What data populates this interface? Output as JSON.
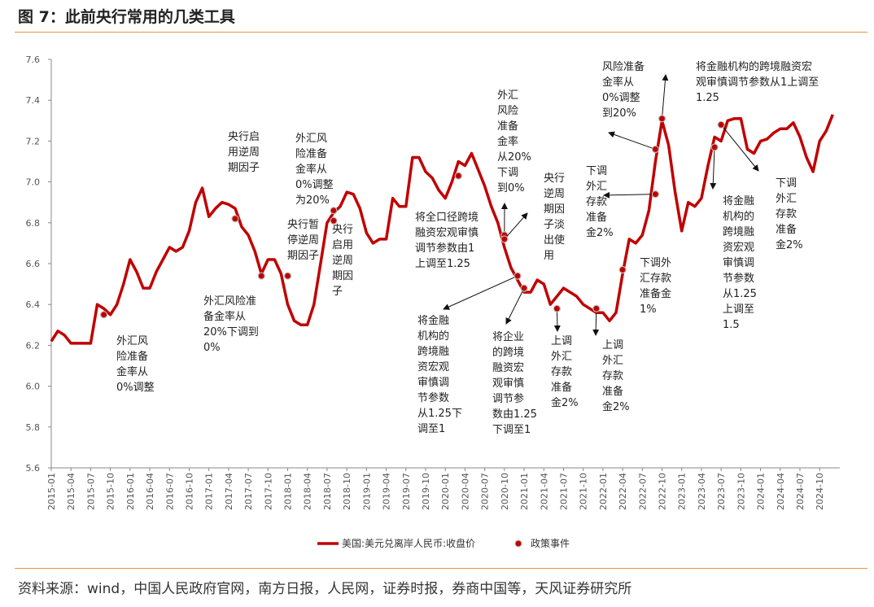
{
  "title": "图 7：此前央行常用的几类工具",
  "source": "资料来源：wind，中国人民政府官网，南方日报，人民网，证券时报，券商中国等，天风证券研究所",
  "chart_data": {
    "type": "line",
    "title": "",
    "xlabel": "",
    "ylabel": "",
    "ylim": [
      5.6,
      7.6
    ],
    "yticks": [
      "5.6",
      "5.8",
      "6.0",
      "6.2",
      "6.4",
      "6.6",
      "6.8",
      "7.0",
      "7.2",
      "7.4",
      "7.6"
    ],
    "grid": false,
    "legend_position": "bottom",
    "line_color": "#c00000",
    "xticks": [
      "2015-01",
      "2015-04",
      "2015-07",
      "2015-10",
      "2016-01",
      "2016-04",
      "2016-07",
      "2016-10",
      "2017-01",
      "2017-04",
      "2017-07",
      "2017-10",
      "2018-01",
      "2018-04",
      "2018-07",
      "2018-10",
      "2019-01",
      "2019-04",
      "2019-07",
      "2019-10",
      "2020-01",
      "2020-04",
      "2020-07",
      "2020-10",
      "2021-01",
      "2021-04",
      "2021-07",
      "2021-10",
      "2022-01",
      "2022-04",
      "2022-07",
      "2022-10",
      "2023-01",
      "2023-04",
      "2023-07",
      "2023-10",
      "2024-01",
      "2024-04",
      "2024-07",
      "2024-10"
    ],
    "series": [
      {
        "name": "美国:美元兑离岸人民币:收盘价",
        "start": "2015-01",
        "frequency": "monthly",
        "values": [
          6.22,
          6.27,
          6.25,
          6.21,
          6.21,
          6.21,
          6.21,
          6.4,
          6.38,
          6.35,
          6.4,
          6.5,
          6.62,
          6.56,
          6.48,
          6.48,
          6.56,
          6.62,
          6.68,
          6.66,
          6.68,
          6.76,
          6.9,
          6.97,
          6.83,
          6.87,
          6.9,
          6.89,
          6.87,
          6.78,
          6.74,
          6.66,
          6.55,
          6.62,
          6.62,
          6.55,
          6.4,
          6.32,
          6.3,
          6.3,
          6.4,
          6.6,
          6.8,
          6.85,
          6.88,
          6.95,
          6.94,
          6.87,
          6.75,
          6.7,
          6.72,
          6.72,
          6.92,
          6.88,
          6.88,
          7.12,
          7.12,
          7.05,
          7.02,
          6.96,
          6.92,
          7.0,
          7.1,
          7.08,
          7.14,
          7.06,
          6.98,
          6.88,
          6.8,
          6.68,
          6.58,
          6.52,
          6.46,
          6.46,
          6.52,
          6.5,
          6.4,
          6.44,
          6.48,
          6.46,
          6.44,
          6.4,
          6.38,
          6.36,
          6.36,
          6.32,
          6.36,
          6.55,
          6.72,
          6.7,
          6.74,
          6.86,
          7.1,
          7.3,
          7.18,
          6.95,
          6.76,
          6.9,
          6.88,
          6.92,
          7.08,
          7.22,
          7.2,
          7.3,
          7.31,
          7.31,
          7.16,
          7.14,
          7.2,
          7.21,
          7.24,
          7.26,
          7.26,
          7.29,
          7.22,
          7.12,
          7.05,
          7.2,
          7.25,
          7.33
        ]
      }
    ],
    "events_legend": "政策事件",
    "events": [
      {
        "date": "2015-09",
        "value": 6.35,
        "lines": [
          "外汇风",
          "险准备",
          "金率从",
          "0%调整"
        ]
      },
      {
        "date": "2017-05",
        "value": 6.82,
        "lines": [
          "央行启",
          "用逆周",
          "期因子"
        ]
      },
      {
        "date": "2017-09",
        "value": 6.54,
        "lines": [
          "外汇风险准",
          "备金率从",
          "20%下调到",
          "0%"
        ]
      },
      {
        "date": "2018-01",
        "value": 6.54,
        "lines": [
          "央行暂",
          "停逆周",
          "期因子"
        ]
      },
      {
        "date": "2018-08",
        "value": 6.86,
        "lines": [
          "外汇风",
          "险准备",
          "金率从",
          "0%调整",
          "为20%"
        ]
      },
      {
        "date": "2018-08",
        "value": 6.81,
        "lines": [
          "央行",
          "启用",
          "逆周",
          "期因",
          "子"
        ]
      },
      {
        "date": "2020-03",
        "value": 7.03,
        "lines": [
          "将全口径跨境",
          "融资宏观审慎",
          "调节参数由1",
          "上调至1.25"
        ]
      },
      {
        "date": "2020-10",
        "value": 6.74,
        "lines": [
          "外汇",
          "风险",
          "准备",
          "金率",
          "从20%",
          "下调",
          "到0%"
        ]
      },
      {
        "date": "2020-10",
        "value": 6.72,
        "lines": [
          "央行",
          "逆周",
          "期因",
          "子淡",
          "出使",
          "用"
        ]
      },
      {
        "date": "2020-12",
        "value": 6.54,
        "lines": [
          "将金融",
          "机构的",
          "跨境融",
          "资宏观",
          "审慎调",
          "节参数",
          "从1.25下",
          "调至1"
        ]
      },
      {
        "date": "2021-01",
        "value": 6.48,
        "lines": [
          "将企业",
          "的跨境",
          "融资宏",
          "观审慎",
          "调节参",
          "数由1.25",
          "下调至1"
        ]
      },
      {
        "date": "2021-06",
        "value": 6.38,
        "lines": [
          "上调",
          "外汇",
          "存款",
          "准备",
          "金2%"
        ]
      },
      {
        "date": "2021-12",
        "value": 6.38,
        "lines": [
          "上调",
          "外汇",
          "存款",
          "准备",
          "金2%"
        ]
      },
      {
        "date": "2022-04",
        "value": 6.57,
        "lines": [
          "下调外",
          "汇存款",
          "准备金",
          "1%"
        ]
      },
      {
        "date": "2022-09",
        "value": 6.94,
        "lines": [
          "下调",
          "外汇",
          "存款",
          "准备",
          "金2%"
        ]
      },
      {
        "date": "2022-09",
        "value": 7.16,
        "lines": [
          "风险准备",
          "金率从",
          "0%调整",
          "到20%"
        ]
      },
      {
        "date": "2022-10",
        "value": 7.31,
        "lines": [
          "将金融机构的跨境融资宏",
          "观审慎调节参数从1上调至",
          "1.25"
        ]
      },
      {
        "date": "2023-06",
        "value": 7.17,
        "lines": [
          "将金融",
          "机构的",
          "跨境融",
          "资宏观",
          "审慎调",
          "节参数",
          "从1.25",
          "上调至",
          "1.5"
        ]
      },
      {
        "date": "2023-07",
        "value": 7.28,
        "lines": [
          "下调",
          "外汇",
          "存款",
          "准备",
          "金2%"
        ]
      }
    ]
  }
}
